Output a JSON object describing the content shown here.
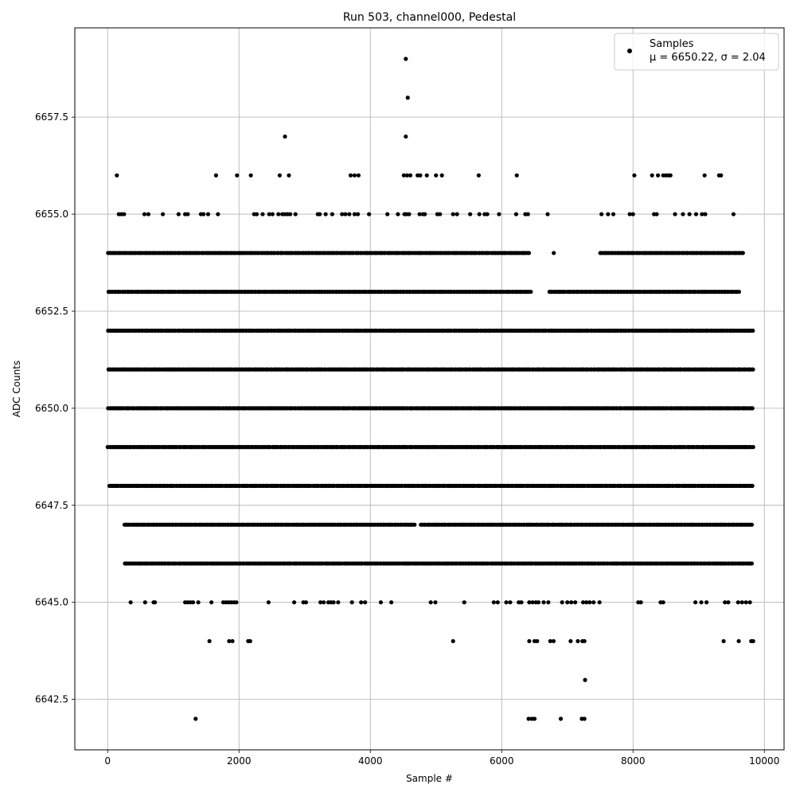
{
  "chart_data": {
    "type": "scatter",
    "title": "Run 503, channel000, Pedestal",
    "xlabel": "Sample #",
    "ylabel": "ADC Counts",
    "xlim": [
      -500,
      10300
    ],
    "ylim": [
      6641.2,
      6659.8
    ],
    "x_ticks": [
      0,
      2000,
      4000,
      6000,
      8000,
      10000
    ],
    "x_tick_labels": [
      "0",
      "2000",
      "4000",
      "6000",
      "8000",
      "10000"
    ],
    "y_ticks": [
      6642.5,
      6645.0,
      6647.5,
      6650.0,
      6652.5,
      6655.0,
      6657.5
    ],
    "y_tick_labels": [
      "6642.5",
      "6645.0",
      "6647.5",
      "6650.0",
      "6652.5",
      "6655.0",
      "6657.5"
    ],
    "grid": true,
    "legend_position": "top-right",
    "series": [
      {
        "name": "Samples",
        "legend_sublabel": "μ = 6650.22, σ = 2.04",
        "color": "#000000",
        "marker": "dot",
        "dense_levels": [
          {
            "y": 6654,
            "x_range": [
              0,
              9680
            ],
            "gaps": [
              [
                6420,
                6780
              ],
              [
                6800,
                7480
              ]
            ]
          },
          {
            "y": 6653,
            "x_range": [
              0,
              9620
            ],
            "gaps": [
              [
                6450,
                6700
              ]
            ]
          },
          {
            "y": 6652,
            "x_range": [
              0,
              9840
            ],
            "gaps": []
          },
          {
            "y": 6651,
            "x_range": [
              0,
              9840
            ],
            "gaps": []
          },
          {
            "y": 6650,
            "x_range": [
              0,
              9840
            ],
            "gaps": []
          },
          {
            "y": 6649,
            "x_range": [
              0,
              9840
            ],
            "gaps": []
          },
          {
            "y": 6648,
            "x_range": [
              20,
              9840
            ],
            "gaps": []
          },
          {
            "y": 6647,
            "x_range": [
              250,
              9820
            ],
            "gaps": [
              [
                4680,
                4760
              ]
            ]
          },
          {
            "y": 6646,
            "x_range": [
              250,
              9820
            ],
            "gaps": []
          }
        ],
        "sparse_points": [
          [
            350,
            6645
          ],
          [
            570,
            6645
          ],
          [
            700,
            6645
          ],
          [
            720,
            6645
          ],
          [
            1180,
            6645
          ],
          [
            1220,
            6645
          ],
          [
            1260,
            6645
          ],
          [
            1300,
            6645
          ],
          [
            1380,
            6645
          ],
          [
            1580,
            6645
          ],
          [
            1760,
            6645
          ],
          [
            1800,
            6645
          ],
          [
            1840,
            6645
          ],
          [
            1880,
            6645
          ],
          [
            1920,
            6645
          ],
          [
            1960,
            6645
          ],
          [
            2450,
            6645
          ],
          [
            2840,
            6645
          ],
          [
            2980,
            6645
          ],
          [
            3020,
            6645
          ],
          [
            3240,
            6645
          ],
          [
            3290,
            6645
          ],
          [
            3360,
            6645
          ],
          [
            3400,
            6645
          ],
          [
            3440,
            6645
          ],
          [
            3510,
            6645
          ],
          [
            3720,
            6645
          ],
          [
            3860,
            6645
          ],
          [
            3920,
            6645
          ],
          [
            4160,
            6645
          ],
          [
            4320,
            6645
          ],
          [
            4920,
            6645
          ],
          [
            4990,
            6645
          ],
          [
            5430,
            6645
          ],
          [
            5880,
            6645
          ],
          [
            5940,
            6645
          ],
          [
            6070,
            6645
          ],
          [
            6130,
            6645
          ],
          [
            6260,
            6645
          ],
          [
            6300,
            6645
          ],
          [
            6420,
            6645
          ],
          [
            6470,
            6645
          ],
          [
            6520,
            6645
          ],
          [
            6560,
            6645
          ],
          [
            6640,
            6645
          ],
          [
            6710,
            6645
          ],
          [
            6920,
            6645
          ],
          [
            7000,
            6645
          ],
          [
            7060,
            6645
          ],
          [
            7120,
            6645
          ],
          [
            7240,
            6645
          ],
          [
            7290,
            6645
          ],
          [
            7340,
            6645
          ],
          [
            7400,
            6645
          ],
          [
            7490,
            6645
          ],
          [
            8080,
            6645
          ],
          [
            8120,
            6645
          ],
          [
            8420,
            6645
          ],
          [
            8460,
            6645
          ],
          [
            8950,
            6645
          ],
          [
            9040,
            6645
          ],
          [
            9120,
            6645
          ],
          [
            9400,
            6645
          ],
          [
            9450,
            6645
          ],
          [
            9600,
            6645
          ],
          [
            9660,
            6645
          ],
          [
            9720,
            6645
          ],
          [
            9780,
            6645
          ],
          [
            1550,
            6644
          ],
          [
            1850,
            6644
          ],
          [
            1900,
            6644
          ],
          [
            2140,
            6644
          ],
          [
            2170,
            6644
          ],
          [
            5260,
            6644
          ],
          [
            6420,
            6644
          ],
          [
            6500,
            6644
          ],
          [
            6540,
            6644
          ],
          [
            6740,
            6644
          ],
          [
            6790,
            6644
          ],
          [
            7050,
            6644
          ],
          [
            7160,
            6644
          ],
          [
            7230,
            6644
          ],
          [
            7260,
            6644
          ],
          [
            9380,
            6644
          ],
          [
            9610,
            6644
          ],
          [
            9800,
            6644
          ],
          [
            9830,
            6644
          ],
          [
            7270,
            6643
          ],
          [
            1340,
            6642
          ],
          [
            6410,
            6642
          ],
          [
            6460,
            6642
          ],
          [
            6500,
            6642
          ],
          [
            6900,
            6642
          ],
          [
            7220,
            6642
          ],
          [
            7260,
            6642
          ],
          [
            170,
            6655
          ],
          [
            210,
            6655
          ],
          [
            250,
            6655
          ],
          [
            560,
            6655
          ],
          [
            620,
            6655
          ],
          [
            840,
            6655
          ],
          [
            1080,
            6655
          ],
          [
            1180,
            6655
          ],
          [
            1220,
            6655
          ],
          [
            1420,
            6655
          ],
          [
            1460,
            6655
          ],
          [
            1530,
            6655
          ],
          [
            1680,
            6655
          ],
          [
            2230,
            6655
          ],
          [
            2270,
            6655
          ],
          [
            2360,
            6655
          ],
          [
            2460,
            6655
          ],
          [
            2510,
            6655
          ],
          [
            2600,
            6655
          ],
          [
            2660,
            6655
          ],
          [
            2700,
            6655
          ],
          [
            2740,
            6655
          ],
          [
            2780,
            6655
          ],
          [
            2860,
            6655
          ],
          [
            3200,
            6655
          ],
          [
            3230,
            6655
          ],
          [
            3320,
            6655
          ],
          [
            3420,
            6655
          ],
          [
            3570,
            6655
          ],
          [
            3620,
            6655
          ],
          [
            3680,
            6655
          ],
          [
            3760,
            6655
          ],
          [
            3810,
            6655
          ],
          [
            3980,
            6655
          ],
          [
            4260,
            6655
          ],
          [
            4420,
            6655
          ],
          [
            4520,
            6655
          ],
          [
            4550,
            6655
          ],
          [
            4590,
            6655
          ],
          [
            4750,
            6655
          ],
          [
            4800,
            6655
          ],
          [
            4830,
            6655
          ],
          [
            5020,
            6655
          ],
          [
            5060,
            6655
          ],
          [
            5260,
            6655
          ],
          [
            5320,
            6655
          ],
          [
            5520,
            6655
          ],
          [
            5660,
            6655
          ],
          [
            5740,
            6655
          ],
          [
            5780,
            6655
          ],
          [
            5960,
            6655
          ],
          [
            6220,
            6655
          ],
          [
            6360,
            6655
          ],
          [
            6400,
            6655
          ],
          [
            6700,
            6655
          ],
          [
            7520,
            6655
          ],
          [
            7620,
            6655
          ],
          [
            7700,
            6655
          ],
          [
            7950,
            6655
          ],
          [
            8000,
            6655
          ],
          [
            8320,
            6655
          ],
          [
            8360,
            6655
          ],
          [
            8640,
            6655
          ],
          [
            8760,
            6655
          ],
          [
            8860,
            6655
          ],
          [
            8960,
            6655
          ],
          [
            9050,
            6655
          ],
          [
            9100,
            6655
          ],
          [
            9530,
            6655
          ],
          [
            140,
            6656
          ],
          [
            1650,
            6656
          ],
          [
            1970,
            6656
          ],
          [
            2180,
            6656
          ],
          [
            2620,
            6656
          ],
          [
            2760,
            6656
          ],
          [
            3700,
            6656
          ],
          [
            3760,
            6656
          ],
          [
            3820,
            6656
          ],
          [
            4510,
            6656
          ],
          [
            4560,
            6656
          ],
          [
            4610,
            6656
          ],
          [
            4720,
            6656
          ],
          [
            4760,
            6656
          ],
          [
            4860,
            6656
          ],
          [
            5000,
            6656
          ],
          [
            5090,
            6656
          ],
          [
            5650,
            6656
          ],
          [
            6230,
            6656
          ],
          [
            8020,
            6656
          ],
          [
            8290,
            6656
          ],
          [
            8380,
            6656
          ],
          [
            8460,
            6656
          ],
          [
            8500,
            6656
          ],
          [
            8540,
            6656
          ],
          [
            8570,
            6656
          ],
          [
            9090,
            6656
          ],
          [
            9310,
            6656
          ],
          [
            9340,
            6656
          ],
          [
            2700,
            6657
          ],
          [
            4540,
            6657
          ],
          [
            4570,
            6658
          ],
          [
            4540,
            6659
          ]
        ]
      }
    ]
  }
}
